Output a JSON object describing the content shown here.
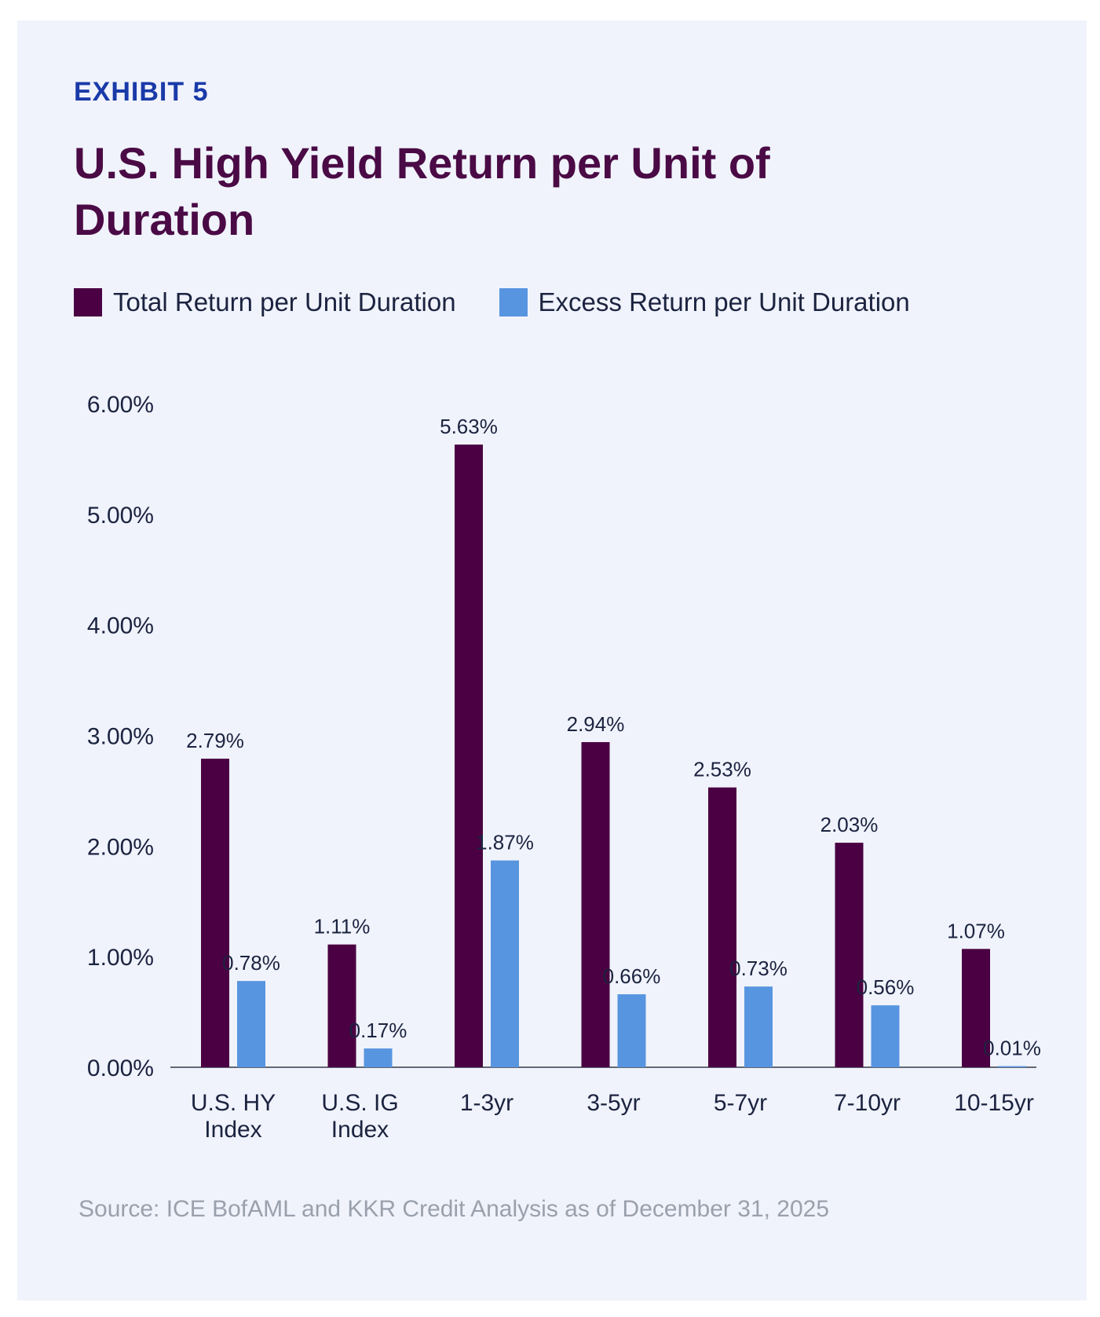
{
  "header": {
    "exhibit": "EXHIBIT 5",
    "title": "U.S. High Yield Return per Unit of Duration"
  },
  "source": "Source: ICE BofAML and KKR Credit Analysis as of December 31, 2025",
  "colors": {
    "total": "#4a0042",
    "excess": "#5895e0",
    "exhibit": "#1a3aa8",
    "title": "#4a0a45"
  },
  "chart_data": {
    "type": "bar",
    "title": "U.S. High Yield Return per Unit of Duration",
    "xlabel": "",
    "ylabel": "",
    "categories": [
      [
        "U.S. HY",
        "Index"
      ],
      [
        "U.S. IG",
        "Index"
      ],
      [
        "1-3yr"
      ],
      [
        "3-5yr"
      ],
      [
        "5-7yr"
      ],
      [
        "7-10yr"
      ],
      [
        "10-15yr"
      ]
    ],
    "series": [
      {
        "name": "Total Return per Unit Duration",
        "values": [
          2.79,
          1.11,
          5.63,
          2.94,
          2.53,
          2.03,
          1.07
        ],
        "labels": [
          "2.79%",
          "1.11%",
          "5.63%",
          "2.94%",
          "2.53%",
          "2.03%",
          "1.07%"
        ]
      },
      {
        "name": "Excess Return per Unit Duration",
        "values": [
          0.78,
          0.17,
          1.87,
          0.66,
          0.73,
          0.56,
          0.01
        ],
        "labels": [
          "0.78%",
          "0.17%",
          "1.87%",
          "0.66%",
          "0.73%",
          "0.56%",
          "0.01%"
        ]
      }
    ],
    "ylim": [
      0,
      6
    ],
    "yticks": [
      "0.00%",
      "1.00%",
      "2.00%",
      "3.00%",
      "4.00%",
      "5.00%",
      "6.00%"
    ],
    "grid": false,
    "legend": "top-left"
  }
}
